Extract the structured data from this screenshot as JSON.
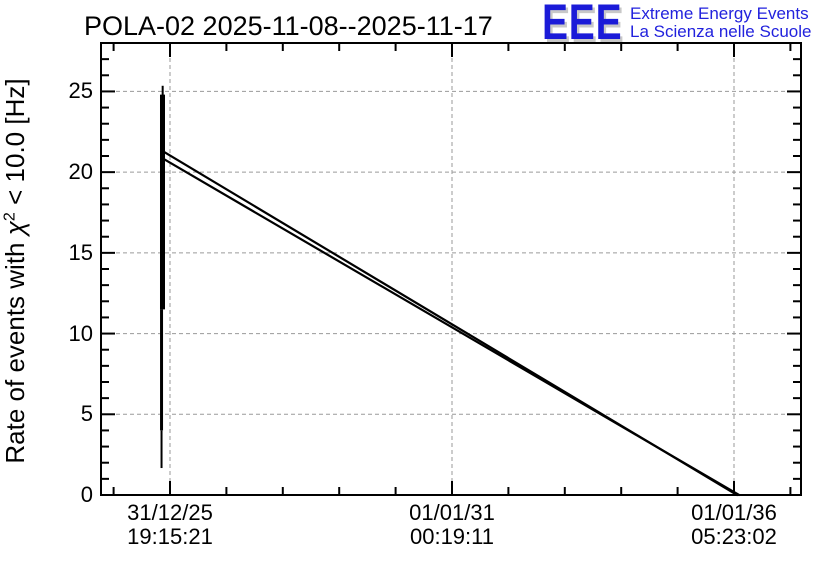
{
  "header": {
    "title": "POLA-02 2025-11-08--2025-11-17",
    "logo": {
      "acronym": "EEE",
      "tagline_line1": "Extreme Energy Events",
      "tagline_line2": "La Scienza nelle Scuole",
      "acronym_color": "#1b1bd8",
      "tagline_color": "#2222dd",
      "shadow_color": "#c8c8c8"
    }
  },
  "y_axis_label": {
    "prefix": "Rate of events with ",
    "chi": "χ",
    "exponent": "2",
    "suffix": " < 10.0 [Hz]"
  },
  "chart_data": {
    "type": "line",
    "title": "POLA-02 2025-11-08--2025-11-17",
    "ylabel": "Rate of events with chi^2 < 10.0 [Hz]",
    "xlabel": "",
    "ylim": [
      0,
      28
    ],
    "y_major_ticks": [
      0,
      5,
      10,
      15,
      20,
      25
    ],
    "y_minor_step": 1,
    "xlim": [
      -0.2447,
      2.2376
    ],
    "x_minor_step": 0.2,
    "x_axis_type": "datetime",
    "x_unit": "major-tick index (ticks equally spaced, ~5 years apart)",
    "x_ticks": [
      {
        "pos": 0,
        "date": "31/12/25",
        "time": "19:15:21"
      },
      {
        "pos": 1,
        "date": "01/01/31",
        "time": "00:19:11"
      },
      {
        "pos": 2,
        "date": "01/01/36",
        "time": "05:23:02"
      }
    ],
    "grid": {
      "show": true,
      "color": "#9a9a9a",
      "dash": "4 3"
    },
    "line_color": "#000000",
    "series": [
      {
        "name": "burst-band",
        "type": "vband",
        "color": "#000000",
        "segments": [
          {
            "x": -0.026,
            "y_from": 25.35,
            "y_to": 22.8,
            "width": 2
          },
          {
            "x": -0.0266,
            "y_from": 24.8,
            "y_to": 11.5,
            "width": 5
          },
          {
            "x": -0.03,
            "y_from": 11.5,
            "y_to": 4.0,
            "width": 3
          },
          {
            "x": -0.03,
            "y_from": 4.0,
            "y_to": 1.67,
            "width": 2
          }
        ]
      },
      {
        "name": "decay-line-upper",
        "type": "line",
        "color": "#000000",
        "width": 2.2,
        "points": [
          [
            -0.021,
            21.25
          ],
          [
            2.011,
            0
          ]
        ]
      },
      {
        "name": "decay-line-lower",
        "type": "line",
        "color": "#000000",
        "width": 2.2,
        "points": [
          [
            -0.021,
            20.8
          ],
          [
            2.018,
            0
          ]
        ]
      }
    ]
  }
}
